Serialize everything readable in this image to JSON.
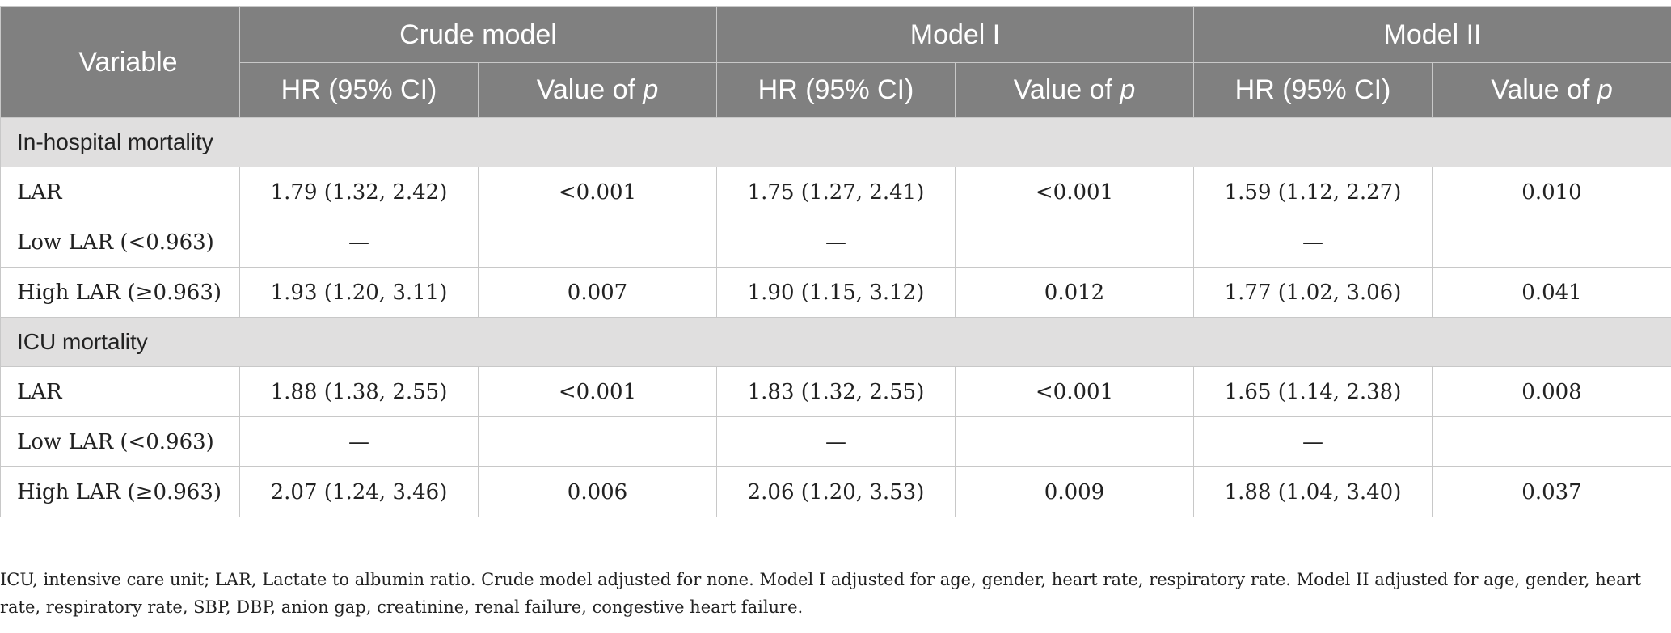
{
  "header": {
    "variable": "Variable",
    "groups": [
      "Crude model",
      "Model I",
      "Model II"
    ],
    "hr_label": "HR (95% CI)",
    "p_label_prefix": "Value of ",
    "p_label_italic": "p"
  },
  "sections": [
    {
      "title": "In-hospital mortality",
      "rows": [
        {
          "label": "LAR",
          "cells": [
            "1.79 (1.32, 2.42)",
            "<0.001",
            "1.75 (1.27, 2.41)",
            "<0.001",
            "1.59 (1.12, 2.27)",
            "0.010"
          ]
        },
        {
          "label": "Low LAR (<0.963)",
          "cells": [
            "—",
            "",
            "—",
            "",
            "—",
            ""
          ]
        },
        {
          "label": "High LAR (≥0.963)",
          "cells": [
            "1.93 (1.20, 3.11)",
            "0.007",
            "1.90 (1.15, 3.12)",
            "0.012",
            "1.77 (1.02, 3.06)",
            "0.041"
          ]
        }
      ]
    },
    {
      "title": "ICU mortality",
      "rows": [
        {
          "label": "LAR",
          "cells": [
            "1.88 (1.38, 2.55)",
            "<0.001",
            "1.83 (1.32, 2.55)",
            "<0.001",
            "1.65 (1.14, 2.38)",
            "0.008"
          ]
        },
        {
          "label": "Low LAR (<0.963)",
          "cells": [
            "—",
            "",
            "—",
            "",
            "—",
            ""
          ]
        },
        {
          "label": "High LAR (≥0.963)",
          "cells": [
            "2.07 (1.24, 3.46)",
            "0.006",
            "2.06 (1.20, 3.53)",
            "0.009",
            "1.88 (1.04, 3.40)",
            "0.037"
          ]
        }
      ]
    }
  ],
  "footnote": "ICU, intensive care unit; LAR, Lactate to albumin ratio. Crude model adjusted for none. Model I adjusted for age, gender, heart rate, respiratory rate. Model II adjusted for age, gender, heart rate, respiratory rate, SBP, DBP, anion gap, creatinine, renal failure, congestive heart failure."
}
